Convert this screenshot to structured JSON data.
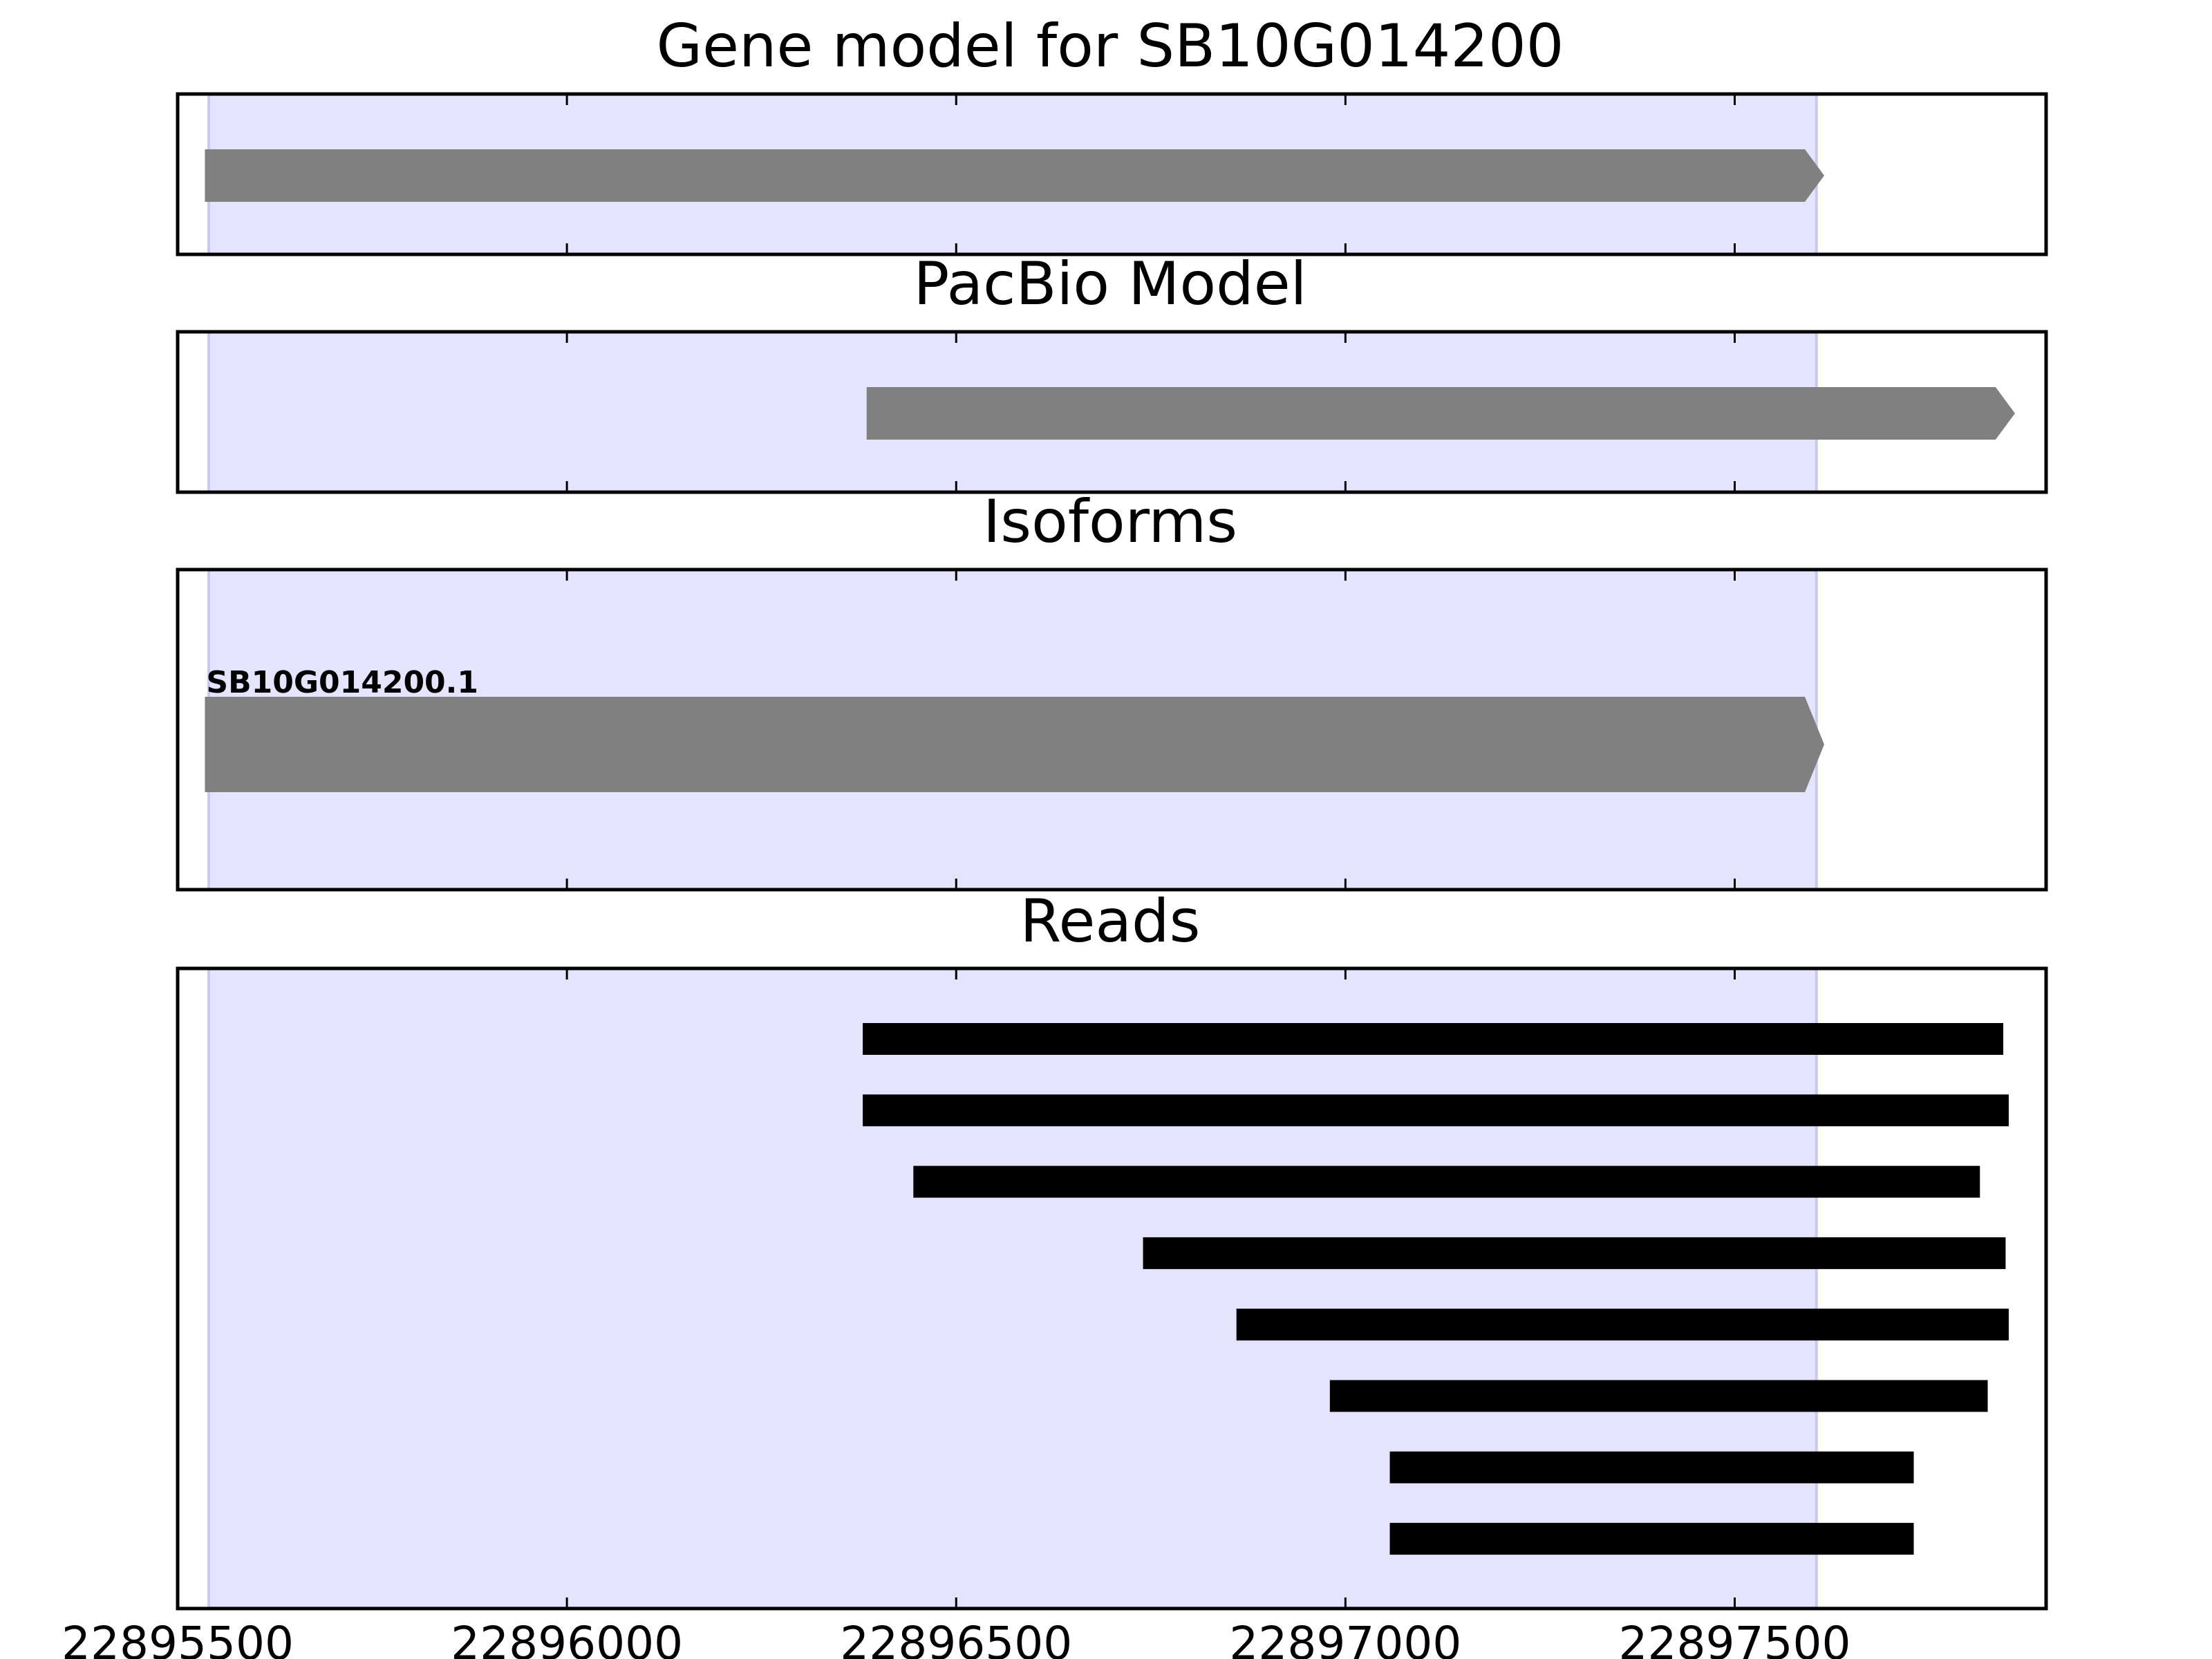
{
  "chart_data": {
    "type": "gene-track",
    "x_range": [
      22895500,
      22897900
    ],
    "x_ticks": [
      22895500,
      22896000,
      22896500,
      22897000,
      22897500
    ],
    "x_tick_labels": [
      "22895500",
      "22896000",
      "22896500",
      "22897000",
      "22897500"
    ],
    "highlight_region": [
      22895540,
      22897605
    ],
    "colors": {
      "highlight": "#e4e4ff",
      "highlight_edge": "#c8c8f0",
      "feature": "#808080",
      "read": "#000000",
      "frame": "#000000"
    },
    "panels": [
      {
        "id": "gene-model",
        "title": "Gene model for SB10G014200",
        "features": [
          {
            "start": 22895535,
            "end": 22897615,
            "strand": "+"
          }
        ]
      },
      {
        "id": "pacbio-model",
        "title": "PacBio Model",
        "features": [
          {
            "start": 22896385,
            "end": 22897860,
            "strand": "+"
          }
        ]
      },
      {
        "id": "isoforms",
        "title": "Isoforms",
        "features": [
          {
            "label": "SB10G014200.1",
            "start": 22895535,
            "end": 22897615,
            "strand": "+"
          }
        ]
      },
      {
        "id": "reads",
        "title": "Reads",
        "reads": [
          {
            "start": 22896380,
            "end": 22897845
          },
          {
            "start": 22896380,
            "end": 22897852
          },
          {
            "start": 22896445,
            "end": 22897815
          },
          {
            "start": 22896740,
            "end": 22897848
          },
          {
            "start": 22896860,
            "end": 22897852
          },
          {
            "start": 22896980,
            "end": 22897825
          },
          {
            "start": 22897057,
            "end": 22897730
          },
          {
            "start": 22897057,
            "end": 22897730
          }
        ]
      }
    ]
  }
}
